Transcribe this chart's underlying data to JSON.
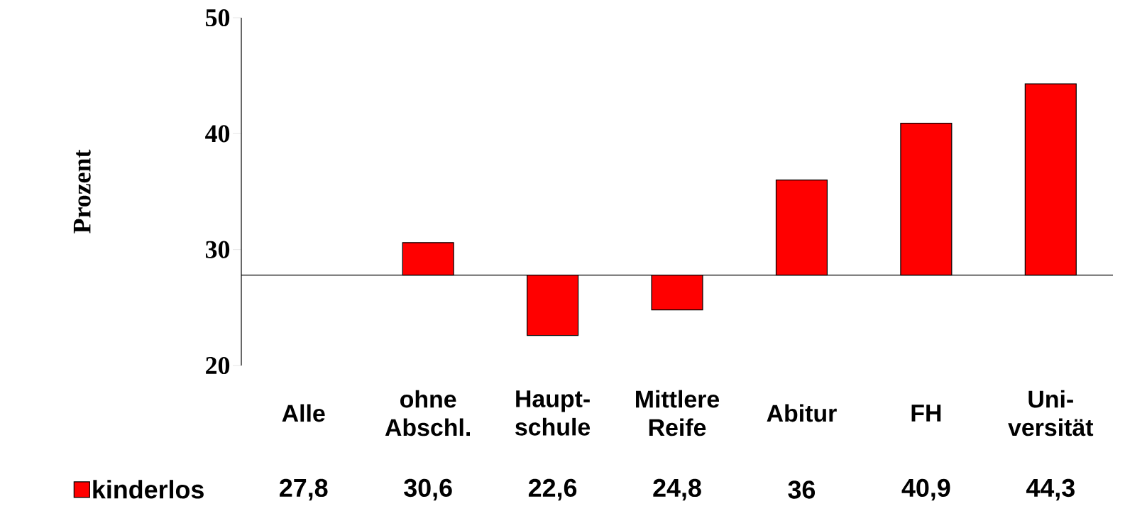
{
  "chart_data": {
    "type": "bar",
    "ylabel": "Prozent",
    "categories": [
      "Alle",
      "ohne Abschl.",
      "Haupt- schule",
      "Mittlere Reife",
      "Abitur",
      "FH",
      "Uni- versität"
    ],
    "series": [
      {
        "name": "kinderlos",
        "color": "#ff0000",
        "base": [
          null,
          27.8,
          27.8,
          27.8,
          27.8,
          27.8,
          27.8
        ],
        "values": [
          null,
          2.8,
          -5.2,
          -3.0,
          8.2,
          13.1,
          16.5
        ]
      }
    ],
    "annotations": [
      "27,8",
      "30,6",
      "22,6",
      "24,8",
      "36",
      "40,9",
      "44,3"
    ],
    "ylim": [
      20,
      50
    ],
    "yticks": [
      20,
      30,
      40,
      50
    ],
    "ref_lines": [
      {
        "axis": "y",
        "value": 27.8
      }
    ],
    "legend": "bottom left"
  }
}
